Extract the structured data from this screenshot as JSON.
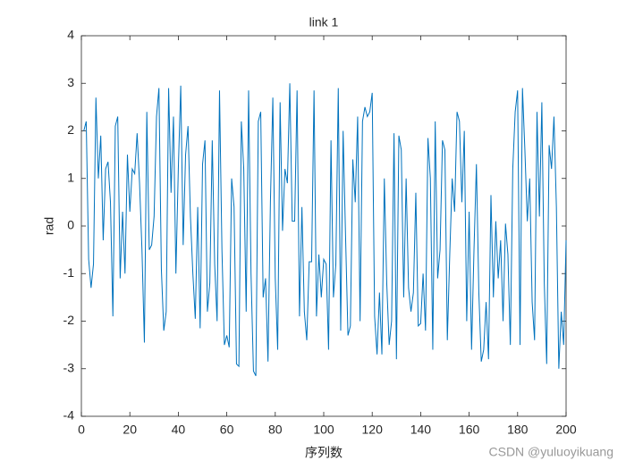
{
  "chart_data": {
    "type": "line",
    "title": "link 1",
    "x_label": "序列数",
    "y_label": "rad",
    "annotation": "CSDN @yuluoyikuang",
    "xlim": [
      0,
      200
    ],
    "xticks": [
      0,
      20,
      40,
      60,
      80,
      100,
      120,
      140,
      160,
      180,
      200
    ],
    "ylim": [
      -4,
      4
    ],
    "yticks": [
      -4,
      -3,
      -2,
      -1,
      0,
      1,
      2,
      3,
      4
    ],
    "x": [
      1,
      2,
      3,
      4,
      5,
      6,
      7,
      8,
      9,
      10,
      11,
      12,
      13,
      14,
      15,
      16,
      17,
      18,
      19,
      20,
      21,
      22,
      23,
      24,
      25,
      26,
      27,
      28,
      29,
      30,
      31,
      32,
      33,
      34,
      35,
      36,
      37,
      38,
      39,
      40,
      41,
      42,
      43,
      44,
      45,
      46,
      47,
      48,
      49,
      50,
      51,
      52,
      53,
      54,
      55,
      56,
      57,
      58,
      59,
      60,
      61,
      62,
      63,
      64,
      65,
      66,
      67,
      68,
      69,
      70,
      71,
      72,
      73,
      74,
      75,
      76,
      77,
      78,
      79,
      80,
      81,
      82,
      83,
      84,
      85,
      86,
      87,
      88,
      89,
      90,
      91,
      92,
      93,
      94,
      95,
      96,
      97,
      98,
      99,
      100,
      101,
      102,
      103,
      104,
      105,
      106,
      107,
      108,
      109,
      110,
      111,
      112,
      113,
      114,
      115,
      116,
      117,
      118,
      119,
      120,
      121,
      122,
      123,
      124,
      125,
      126,
      127,
      128,
      129,
      130,
      131,
      132,
      133,
      134,
      135,
      136,
      137,
      138,
      139,
      140,
      141,
      142,
      143,
      144,
      145,
      146,
      147,
      148,
      149,
      150,
      151,
      152,
      153,
      154,
      155,
      156,
      157,
      158,
      159,
      160,
      161,
      162,
      163,
      164,
      165,
      166,
      167,
      168,
      169,
      170,
      171,
      172,
      173,
      174,
      175,
      176,
      177,
      178,
      179,
      180,
      181,
      182,
      183,
      184,
      185,
      186,
      187,
      188,
      189,
      190,
      191,
      192,
      193,
      194,
      195,
      196,
      197,
      198,
      199,
      200
    ],
    "series": [
      {
        "color": "#0072bd",
        "values": [
          2.0,
          2.2,
          -0.7,
          -1.3,
          -0.8,
          2.7,
          1.0,
          1.9,
          -0.3,
          1.2,
          1.35,
          0.5,
          -1.9,
          2.1,
          2.3,
          -1.1,
          0.3,
          -1.0,
          1.5,
          0.3,
          1.2,
          1.1,
          1.95,
          0.9,
          -0.5,
          -2.45,
          2.4,
          -0.5,
          -0.4,
          0.2,
          2.3,
          2.9,
          -0.9,
          -2.2,
          -1.8,
          2.9,
          0.7,
          2.3,
          -1.0,
          1.2,
          2.95,
          -0.4,
          1.5,
          2.1,
          0.2,
          -1.0,
          -1.95,
          0.4,
          -2.15,
          1.3,
          1.8,
          -1.8,
          -1.2,
          1.8,
          -0.8,
          -2.0,
          2.85,
          -0.5,
          -2.5,
          -2.3,
          -2.55,
          1.0,
          0.4,
          -2.9,
          -2.95,
          2.2,
          1.2,
          -1.8,
          2.85,
          -1.0,
          -3.05,
          -3.15,
          2.2,
          2.4,
          -1.5,
          -1.1,
          -2.85,
          0.5,
          2.7,
          -1.1,
          -2.6,
          2.6,
          -0.1,
          1.2,
          0.9,
          3.0,
          0.1,
          0.1,
          2.85,
          -1.9,
          0.4,
          -1.8,
          -2.4,
          -0.75,
          -0.75,
          2.85,
          -1.9,
          -0.6,
          -1.5,
          -0.7,
          -0.8,
          -2.6,
          1.8,
          -1.5,
          -0.8,
          2.9,
          -2.2,
          2.0,
          -0.2,
          -2.3,
          -2.1,
          1.4,
          0.5,
          2.3,
          -2.0,
          2.2,
          2.5,
          2.3,
          2.4,
          2.8,
          -1.9,
          -2.7,
          -1.4,
          -2.7,
          1.0,
          -1.2,
          -2.5,
          -2.0,
          1.95,
          -2.8,
          1.9,
          1.6,
          -1.5,
          1.0,
          -1.3,
          -1.8,
          -1.4,
          0.7,
          -2.1,
          -2.05,
          -1.0,
          -2.2,
          1.85,
          1.0,
          -2.6,
          2.2,
          -1.1,
          -0.5,
          1.8,
          1.6,
          -2.4,
          -0.6,
          1.0,
          0.3,
          2.4,
          2.2,
          0.5,
          2.0,
          -2.0,
          0.3,
          -2.6,
          -0.5,
          1.3,
          -1.4,
          -2.85,
          -2.6,
          -1.6,
          -2.8,
          0.65,
          -1.5,
          0.1,
          -1.1,
          -0.3,
          -2.0,
          0.05,
          -0.6,
          -2.5,
          1.2,
          2.4,
          2.85,
          -2.5,
          2.9,
          1.6,
          0.1,
          1.0,
          -1.6,
          -2.4,
          2.4,
          0.2,
          2.6,
          -1.2,
          -2.9,
          1.7,
          1.2,
          2.3,
          0.4,
          -3.0,
          -1.8,
          -2.5,
          -0.3
        ]
      }
    ]
  }
}
